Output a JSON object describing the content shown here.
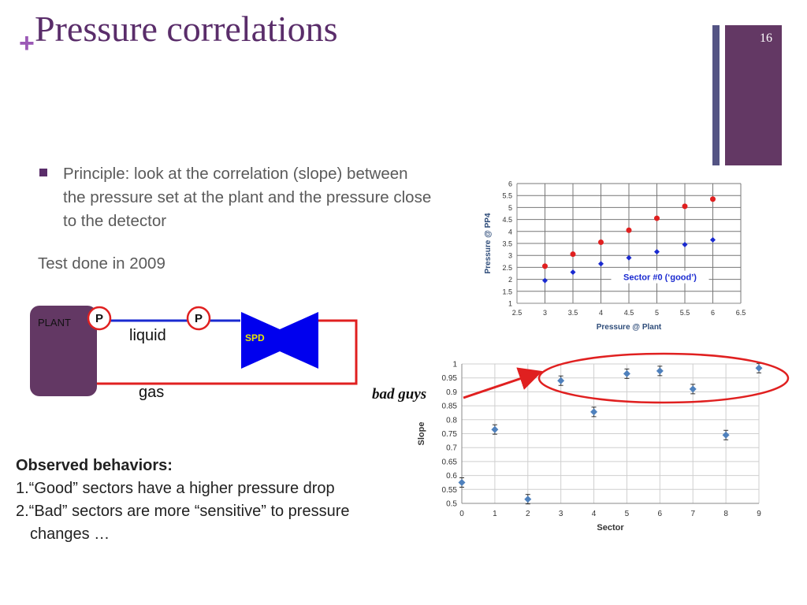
{
  "slide": {
    "title": "Pressure correlations",
    "plus": "+",
    "number": "16",
    "colors": {
      "accent": "#5a2d6a",
      "bar_dark": "#545484",
      "bar_purple": "#633864"
    }
  },
  "content": {
    "principle": "Principle: look at the correlation (slope) between the pressure set at the plant and the pressure close to the detector",
    "test_note": "Test done in 2009",
    "observed_heading": "Observed behaviors:",
    "observed_items": [
      "1.“Good” sectors have a higher pressure drop",
      "2.“Bad” sectors are more “sensitive” to pressure",
      "changes …"
    ],
    "bad_guys": "bad guys"
  },
  "diagram": {
    "plant_label": "PLANT",
    "p_label_1": "P",
    "p_label_2": "P",
    "liquid_label": "liquid",
    "gas_label": "gas",
    "spd_label": "SPD"
  },
  "chart_data": [
    {
      "type": "scatter",
      "xlabel": "Pressure @ Plant",
      "ylabel": "Pressure @ PP4",
      "xlim": [
        2.5,
        6.5
      ],
      "ylim": [
        1,
        6
      ],
      "xticks": [
        "2.5",
        "3",
        "3.5",
        "4",
        "4.5",
        "5",
        "5.5",
        "6",
        "6.5"
      ],
      "yticks": [
        "1",
        "1.5",
        "2",
        "2.5",
        "3",
        "3.5",
        "4",
        "4.5",
        "5",
        "5.5",
        "6"
      ],
      "grid": true,
      "annotation": "Sector #0 (‘good’)",
      "series": [
        {
          "color": "#e02020",
          "marker": "circle",
          "x": [
            3,
            3.5,
            4,
            4.5,
            5,
            5.5,
            6
          ],
          "y": [
            2.55,
            3.05,
            3.55,
            4.05,
            4.55,
            5.05,
            5.35
          ]
        },
        {
          "color": "#1a2ad0",
          "marker": "diamond",
          "x": [
            3,
            3.5,
            4,
            4.5,
            5,
            5.5,
            6
          ],
          "y": [
            1.95,
            2.3,
            2.65,
            2.9,
            3.15,
            3.45,
            3.65
          ]
        }
      ]
    },
    {
      "type": "scatter",
      "xlabel": "Sector",
      "ylabel": "Slope",
      "xlim": [
        0,
        9
      ],
      "ylim": [
        0.5,
        1
      ],
      "xticks": [
        "0",
        "1",
        "2",
        "3",
        "4",
        "5",
        "6",
        "7",
        "8",
        "9"
      ],
      "yticks": [
        "0.5",
        "0.55",
        "0.6",
        "0.65",
        "0.7",
        "0.75",
        "0.8",
        "0.85",
        "0.9",
        "0.95",
        "1"
      ],
      "grid": true,
      "series": [
        {
          "color": "#4f81bd",
          "marker": "diamond",
          "x": [
            0,
            1,
            2,
            3,
            4,
            5,
            6,
            7,
            8,
            9
          ],
          "y": [
            0.575,
            0.765,
            0.515,
            0.94,
            0.828,
            0.965,
            0.975,
            0.91,
            0.745,
            0.985
          ]
        }
      ]
    }
  ]
}
